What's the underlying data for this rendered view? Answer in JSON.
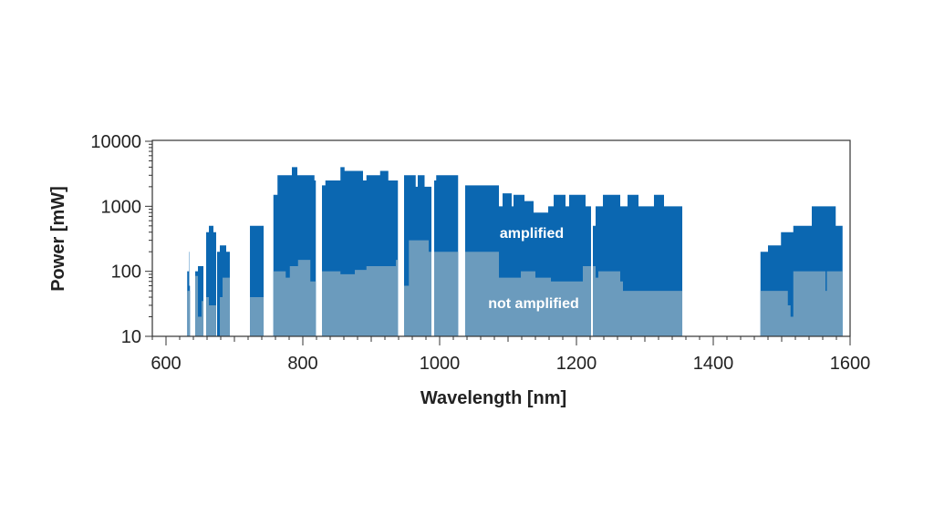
{
  "chart_data": {
    "type": "area",
    "title": "",
    "xlabel": "Wavelength [nm]",
    "ylabel": "Power [mW]",
    "xlim": [
      580,
      1600
    ],
    "ylim": [
      10,
      10000
    ],
    "yscale": "log",
    "grid": false,
    "x_ticks": [
      600,
      800,
      1000,
      1200,
      1400,
      1600
    ],
    "y_ticks": [
      10,
      100,
      1000,
      10000
    ],
    "x_tick_labels": [
      "600",
      "800",
      "1000",
      "1200",
      "1400",
      "1600"
    ],
    "y_tick_labels": [
      "10",
      "100",
      "1000",
      "10000"
    ],
    "annotations": {
      "amplified": "amplified",
      "not_amplified": "not amplified"
    },
    "colors": {
      "amplified": "#0b67b1",
      "not_amplified": "#6b9bbd",
      "axis": "#333333"
    },
    "series_names": [
      "amplified",
      "not amplified"
    ],
    "segments": [
      {
        "end": 635,
        "steps": [
          [
            631,
            100,
            50
          ],
          [
            633.5,
            200,
            50
          ],
          [
            634,
            60,
            50
          ]
        ]
      },
      {
        "end": 654.7,
        "steps": [
          [
            642.7,
            100,
            85
          ],
          [
            646.7,
            120,
            20
          ],
          [
            652,
            120,
            35
          ]
        ]
      },
      {
        "end": 673.3,
        "steps": [
          [
            658.7,
            400,
            40
          ],
          [
            662.7,
            500,
            30
          ],
          [
            669.3,
            400,
            30
          ]
        ]
      },
      {
        "end": 693.3,
        "steps": [
          [
            674.7,
            200,
            10
          ],
          [
            678.7,
            250,
            40
          ],
          [
            682.7,
            250,
            80
          ],
          [
            688,
            200,
            80
          ]
        ]
      },
      {
        "end": 742.7,
        "steps": [
          [
            722.7,
            500,
            40
          ]
        ]
      },
      {
        "end": 819,
        "steps": [
          [
            757,
            1500,
            100
          ],
          [
            763,
            3000,
            100
          ],
          [
            775,
            3000,
            80
          ],
          [
            781,
            3000,
            120
          ],
          [
            784,
            4000,
            120
          ],
          [
            792,
            3000,
            120
          ],
          [
            793,
            3000,
            150
          ],
          [
            811,
            3000,
            70
          ],
          [
            817,
            2500,
            70
          ]
        ]
      },
      {
        "end": 939,
        "steps": [
          [
            828,
            2100,
            100
          ],
          [
            833,
            2500,
            100
          ],
          [
            855,
            4000,
            90
          ],
          [
            861,
            3500,
            90
          ],
          [
            876,
            3500,
            105
          ],
          [
            888,
            2500,
            105
          ],
          [
            893,
            3000,
            120
          ],
          [
            913,
            3500,
            120
          ],
          [
            925,
            2500,
            120
          ],
          [
            936,
            2500,
            150
          ]
        ]
      },
      {
        "end": 988,
        "steps": [
          [
            948,
            3000,
            60
          ],
          [
            955,
            3000,
            300
          ],
          [
            965,
            2000,
            300
          ],
          [
            968,
            3000,
            300
          ],
          [
            978,
            2000,
            300
          ],
          [
            984,
            2000,
            200
          ]
        ]
      },
      {
        "end": 1027,
        "steps": [
          [
            992,
            2500,
            200
          ],
          [
            995,
            3000,
            200
          ]
        ]
      },
      {
        "end": 1221.3,
        "steps": [
          [
            1037.3,
            2100,
            200
          ],
          [
            1086.7,
            1000,
            80
          ],
          [
            1092,
            1580,
            80
          ],
          [
            1105.3,
            1000,
            80
          ],
          [
            1108,
            1500,
            80
          ],
          [
            1118.7,
            1500,
            100
          ],
          [
            1124,
            1200,
            100
          ],
          [
            1137.3,
            800,
            100
          ],
          [
            1140,
            800,
            80
          ],
          [
            1158.7,
            1000,
            80
          ],
          [
            1162.7,
            1000,
            70
          ],
          [
            1166.7,
            1500,
            70
          ],
          [
            1184,
            1000,
            70
          ],
          [
            1189.3,
            1500,
            70
          ],
          [
            1209.3,
            1500,
            120
          ],
          [
            1213.3,
            1000,
            120
          ]
        ]
      },
      {
        "end": 1354.7,
        "steps": [
          [
            1224,
            500,
            120
          ],
          [
            1228,
            1000,
            80
          ],
          [
            1232,
            1000,
            100
          ],
          [
            1238.7,
            1500,
            100
          ],
          [
            1264,
            1000,
            70
          ],
          [
            1268,
            1000,
            50
          ],
          [
            1274.7,
            1500,
            50
          ],
          [
            1290.7,
            1000,
            50
          ],
          [
            1313.3,
            1500,
            50
          ],
          [
            1328,
            1000,
            50
          ]
        ]
      },
      {
        "end": 1589,
        "steps": [
          [
            1469,
            200,
            50
          ],
          [
            1480,
            250,
            50
          ],
          [
            1499,
            400,
            50
          ],
          [
            1509,
            400,
            30
          ],
          [
            1513,
            400,
            20
          ],
          [
            1517,
            500,
            100
          ],
          [
            1544,
            1000,
            100
          ],
          [
            1564,
            1000,
            50
          ],
          [
            1566,
            1000,
            100
          ],
          [
            1579,
            500,
            100
          ]
        ]
      }
    ]
  }
}
